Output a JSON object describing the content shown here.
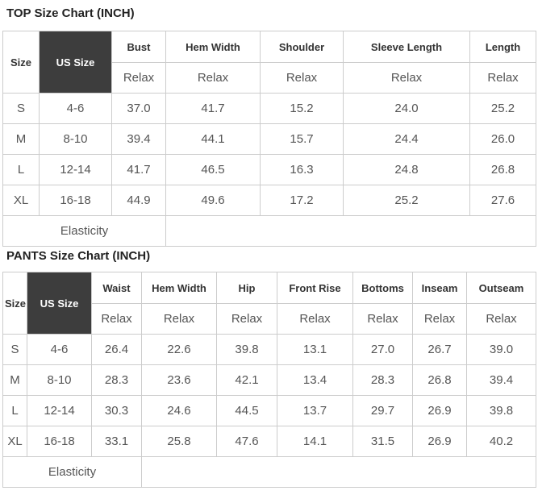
{
  "colors": {
    "us_size_header_bg": "#3d3d3d",
    "us_size_header_text": "#ffffff",
    "border": "#cccccc",
    "title_text": "#222222",
    "header_text": "#333333",
    "cell_text": "#555555"
  },
  "tables": [
    {
      "title": "TOP Size Chart (INCH)",
      "size_header": "Size",
      "us_size_header": "US Size",
      "measure_headers": [
        "Bust",
        "Hem Width",
        "Shoulder",
        "Sleeve Length",
        "Length"
      ],
      "fit_label": "Relax",
      "rows": [
        {
          "size": "S",
          "us_size": "4-6",
          "values": [
            "37.0",
            "41.7",
            "15.2",
            "24.0",
            "25.2"
          ]
        },
        {
          "size": "M",
          "us_size": "8-10",
          "values": [
            "39.4",
            "44.1",
            "15.7",
            "24.4",
            "26.0"
          ]
        },
        {
          "size": "L",
          "us_size": "12-14",
          "values": [
            "41.7",
            "46.5",
            "16.3",
            "24.8",
            "26.8"
          ]
        },
        {
          "size": "XL",
          "us_size": "16-18",
          "values": [
            "44.9",
            "49.6",
            "17.2",
            "25.2",
            "27.6"
          ]
        }
      ],
      "footer_label": "Elasticity",
      "footer_label_colspan": 3
    },
    {
      "title": "PANTS Size Chart (INCH)",
      "size_header": "Size",
      "us_size_header": "US Size",
      "measure_headers": [
        "Waist",
        "Hem Width",
        "Hip",
        "Front Rise",
        "Bottoms",
        "Inseam",
        "Outseam"
      ],
      "fit_label": "Relax",
      "rows": [
        {
          "size": "S",
          "us_size": "4-6",
          "values": [
            "26.4",
            "22.6",
            "39.8",
            "13.1",
            "27.0",
            "26.7",
            "39.0"
          ]
        },
        {
          "size": "M",
          "us_size": "8-10",
          "values": [
            "28.3",
            "23.6",
            "42.1",
            "13.4",
            "28.3",
            "26.8",
            "39.4"
          ]
        },
        {
          "size": "L",
          "us_size": "12-14",
          "values": [
            "30.3",
            "24.6",
            "44.5",
            "13.7",
            "29.7",
            "26.9",
            "39.8"
          ]
        },
        {
          "size": "XL",
          "us_size": "16-18",
          "values": [
            "33.1",
            "25.8",
            "47.6",
            "14.1",
            "31.5",
            "26.9",
            "40.2"
          ]
        }
      ],
      "footer_label": "Elasticity",
      "footer_label_colspan": 3
    }
  ]
}
